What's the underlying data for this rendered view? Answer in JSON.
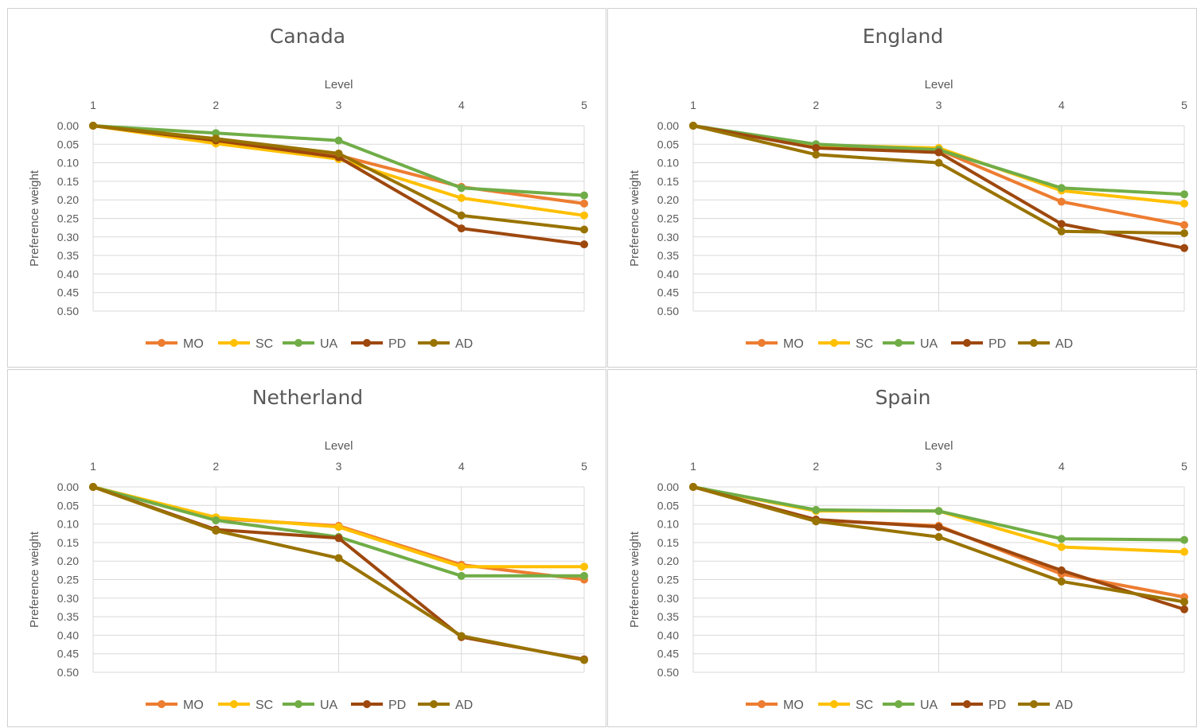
{
  "colors": {
    "MO": "#ed7d31",
    "SC": "#ffc000",
    "UA": "#70ad47",
    "PD": "#9e480e",
    "AD": "#997300",
    "grid": "#d9d9d9",
    "text": "#595959"
  },
  "chart_data": [
    {
      "type": "line",
      "title": "Canada",
      "xlabel": "Level",
      "ylabel": "Preference weight",
      "categories": [
        "1",
        "2",
        "3",
        "4",
        "5"
      ],
      "yticks": [
        "0.00",
        "0.05",
        "0.10",
        "0.15",
        "0.20",
        "0.25",
        "0.30",
        "0.35",
        "0.40",
        "0.45",
        "0.50"
      ],
      "ylim": [
        0,
        0.5
      ],
      "y_reversed": true,
      "x_axis_position": "top",
      "grid": true,
      "legend": "bottom",
      "series": [
        {
          "name": "MO",
          "values": [
            0,
            0.045,
            0.08,
            0.165,
            0.21
          ]
        },
        {
          "name": "SC",
          "values": [
            0,
            0.048,
            0.09,
            0.195,
            0.242
          ]
        },
        {
          "name": "UA",
          "values": [
            0,
            0.02,
            0.04,
            0.168,
            0.188
          ]
        },
        {
          "name": "PD",
          "values": [
            0,
            0.04,
            0.085,
            0.277,
            0.32
          ]
        },
        {
          "name": "AD",
          "values": [
            0,
            0.035,
            0.075,
            0.242,
            0.28
          ]
        }
      ]
    },
    {
      "type": "line",
      "title": "England",
      "xlabel": "Level",
      "ylabel": "Preference weight",
      "categories": [
        "1",
        "2",
        "3",
        "4",
        "5"
      ],
      "yticks": [
        "0.00",
        "0.05",
        "0.10",
        "0.15",
        "0.20",
        "0.25",
        "0.30",
        "0.35",
        "0.40",
        "0.45",
        "0.50"
      ],
      "ylim": [
        0,
        0.5
      ],
      "y_reversed": true,
      "x_axis_position": "top",
      "grid": true,
      "legend": "bottom",
      "series": [
        {
          "name": "MO",
          "values": [
            0,
            0.055,
            0.065,
            0.205,
            0.268
          ]
        },
        {
          "name": "SC",
          "values": [
            0,
            0.052,
            0.06,
            0.175,
            0.21
          ]
        },
        {
          "name": "UA",
          "values": [
            0,
            0.05,
            0.065,
            0.168,
            0.185
          ]
        },
        {
          "name": "PD",
          "values": [
            0,
            0.06,
            0.072,
            0.265,
            0.33
          ]
        },
        {
          "name": "AD",
          "values": [
            0,
            0.078,
            0.1,
            0.285,
            0.29
          ]
        }
      ]
    },
    {
      "type": "line",
      "title": "Netherland",
      "xlabel": "Level",
      "ylabel": "Preference weight",
      "categories": [
        "1",
        "2",
        "3",
        "4",
        "5"
      ],
      "yticks": [
        "0.00",
        "0.05",
        "0.10",
        "0.15",
        "0.20",
        "0.25",
        "0.30",
        "0.35",
        "0.40",
        "0.45",
        "0.50"
      ],
      "ylim": [
        0,
        0.5
      ],
      "y_reversed": true,
      "x_axis_position": "top",
      "grid": true,
      "legend": "bottom",
      "series": [
        {
          "name": "MO",
          "values": [
            0,
            0.085,
            0.105,
            0.21,
            0.25
          ]
        },
        {
          "name": "SC",
          "values": [
            0,
            0.082,
            0.108,
            0.215,
            0.215
          ]
        },
        {
          "name": "UA",
          "values": [
            0,
            0.09,
            0.135,
            0.24,
            0.24
          ]
        },
        {
          "name": "PD",
          "values": [
            0,
            0.115,
            0.138,
            0.405,
            0.465
          ]
        },
        {
          "name": "AD",
          "values": [
            0,
            0.118,
            0.192,
            0.402,
            0.467
          ]
        }
      ]
    },
    {
      "type": "line",
      "title": "Spain",
      "xlabel": "Level",
      "ylabel": "Preference weight",
      "categories": [
        "1",
        "2",
        "3",
        "4",
        "5"
      ],
      "yticks": [
        "0.00",
        "0.05",
        "0.10",
        "0.15",
        "0.20",
        "0.25",
        "0.30",
        "0.35",
        "0.40",
        "0.45",
        "0.50"
      ],
      "ylim": [
        0,
        0.5
      ],
      "y_reversed": true,
      "x_axis_position": "top",
      "grid": true,
      "legend": "bottom",
      "series": [
        {
          "name": "MO",
          "values": [
            0,
            0.09,
            0.105,
            0.235,
            0.297
          ]
        },
        {
          "name": "SC",
          "values": [
            0,
            0.065,
            0.065,
            0.162,
            0.175
          ]
        },
        {
          "name": "UA",
          "values": [
            0,
            0.062,
            0.065,
            0.14,
            0.143
          ]
        },
        {
          "name": "PD",
          "values": [
            0,
            0.088,
            0.108,
            0.225,
            0.33
          ]
        },
        {
          "name": "AD",
          "values": [
            0,
            0.093,
            0.135,
            0.255,
            0.31
          ]
        }
      ]
    }
  ]
}
